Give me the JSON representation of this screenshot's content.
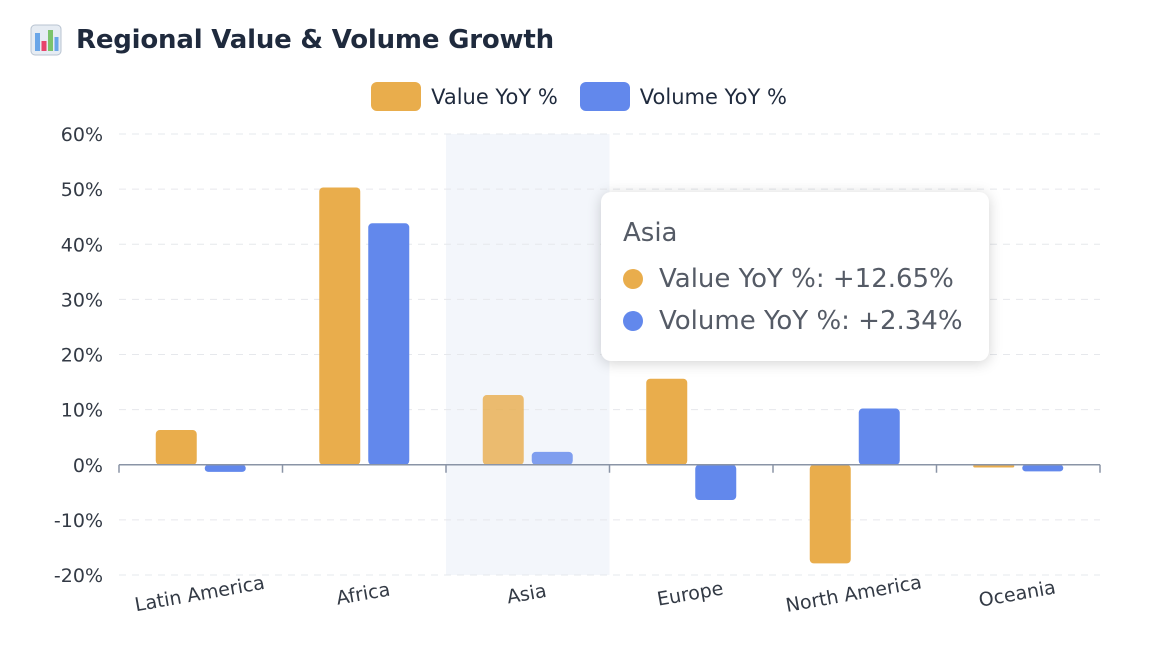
{
  "header": {
    "title": "Regional Value & Volume Growth",
    "icon": "bar-chart-icon"
  },
  "chart_data": {
    "type": "bar",
    "title": "Regional Value & Volume Growth",
    "xlabel": "",
    "ylabel": "",
    "categories": [
      "Latin America",
      "Africa",
      "Asia",
      "Europe",
      "North America",
      "Oceania"
    ],
    "series": [
      {
        "name": "Value YoY %",
        "color": "#e9ad4c",
        "values": [
          6.3,
          50.3,
          12.65,
          15.6,
          -17.9,
          -0.5
        ]
      },
      {
        "name": "Volume YoY %",
        "color": "#6288ec",
        "values": [
          -1.3,
          43.8,
          2.34,
          -6.4,
          10.2,
          -1.2
        ]
      }
    ],
    "ylim": [
      -20,
      60
    ],
    "yticks": [
      -20,
      -10,
      0,
      10,
      20,
      30,
      40,
      50,
      60
    ],
    "ytick_labels": [
      "-20%",
      "-10%",
      "0%",
      "10%",
      "20%",
      "30%",
      "40%",
      "50%",
      "60%"
    ],
    "grid": true,
    "legend": "top-center",
    "highlighted_category": "Asia"
  },
  "tooltip": {
    "title": "Asia",
    "rows": [
      {
        "label": "Value YoY %: +12.65%",
        "color": "#e9ad4c"
      },
      {
        "label": "Volume YoY %: +2.34%",
        "color": "#6288ec"
      }
    ]
  }
}
